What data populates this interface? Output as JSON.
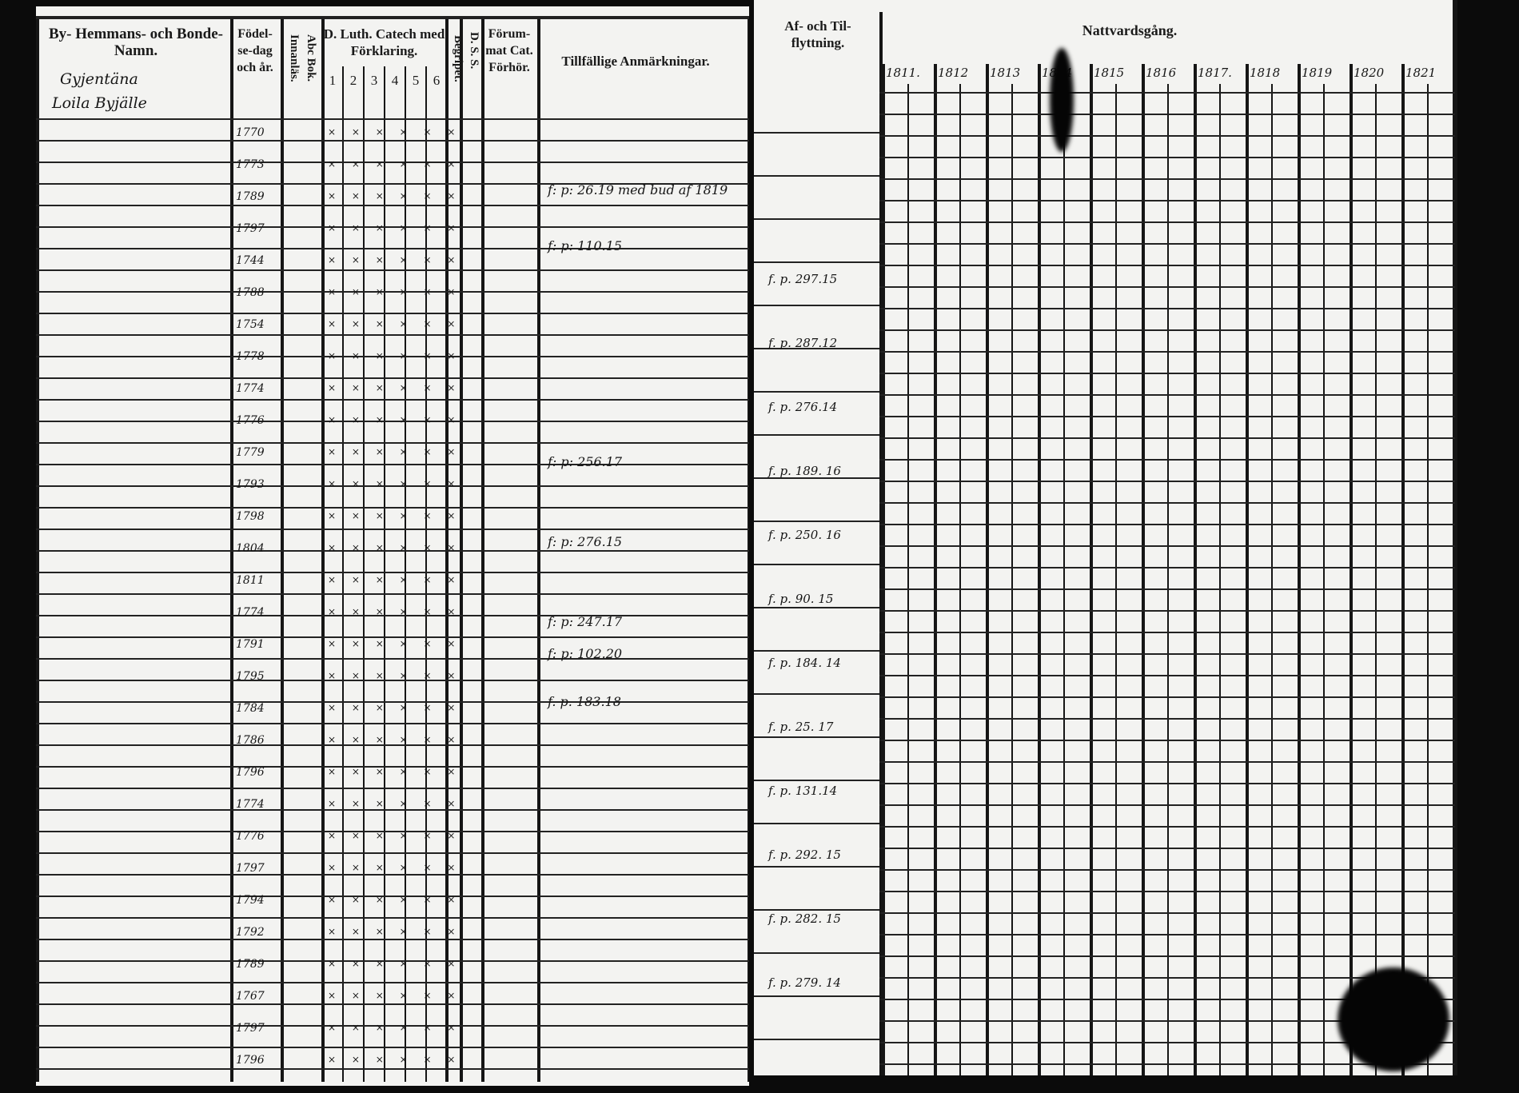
{
  "left_page": {
    "headers": {
      "name": "By- Hemmans- och Bonde- Namn.",
      "birth": "Födel- se-dag och år.",
      "abc": "Abc Bok. Innanläs.",
      "catechism": "D. Luth. Catech med Förklaring.",
      "catechism_numbers": [
        "1",
        "2",
        "3",
        "4",
        "5",
        "6"
      ],
      "begripet": "Begripet.",
      "dss": "D. S. S.",
      "forum": "Förum- mat Cat. Förhör.",
      "remarks": "Tillfällige Anmärkningar."
    },
    "handwritten_heading": [
      "Gyjentäna",
      "Loila Byjälle"
    ],
    "birth_years": [
      "1770",
      "1773",
      "1789",
      "1797",
      "1744",
      "1788",
      "1754",
      "1778",
      "1774",
      "1776",
      "1779",
      "1793",
      "1798",
      "1804",
      "1811",
      "1774",
      "1791",
      "1795",
      "1784",
      "1786",
      "1796",
      "1774",
      "1776",
      "1797",
      "1794",
      "1792",
      "1789",
      "1767",
      "1797",
      "1796"
    ],
    "remarks": [
      "f: p: 26.19 med bud af 1819",
      "f: p: 110.15",
      "f: p: 256.17",
      "f: p: 276.15",
      "f: p: 247.17",
      "f: p: 102.20",
      "f. p. 183.18"
    ]
  },
  "right_page": {
    "headers": {
      "moves": "Af- och Til- flyttning.",
      "communion": "Nattvardsgång."
    },
    "years": [
      "1811.",
      "1812",
      "1813",
      "1814",
      "1815",
      "1816",
      "1817.",
      "1818",
      "1819",
      "1820",
      "1821"
    ],
    "moves_notes": [
      "f. p. 297.15",
      "f. p. 287.12",
      "f. p. 276.14",
      "f. p. 189. 16",
      "f. p. 250. 16",
      "f. p. 90. 15",
      "f. p. 184. 14",
      "f. p. 25. 17",
      "f. p. 131.14",
      "f. p. 292. 15",
      "f. p. 282. 15",
      "f. p. 279. 14"
    ]
  }
}
